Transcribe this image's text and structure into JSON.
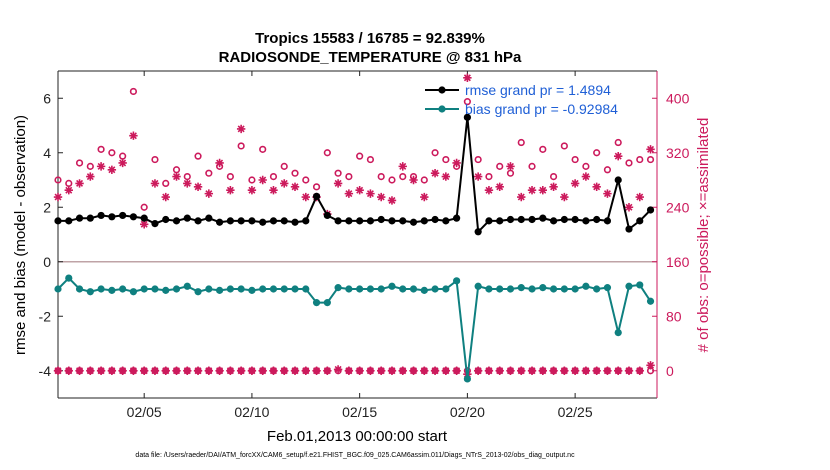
{
  "colors": {
    "rmse": "#000000",
    "bias": "#0f8080",
    "obs": "#cc1a5c",
    "legend_text": "#1f5fd6",
    "zero_line": "#bfa3a6"
  },
  "chart_data": {
    "type": "line",
    "title": "Tropics 15583 / 16785 = 92.839%",
    "subtitle": "RADIOSONDE_TEMPERATURE @ 831 hPa",
    "xlabel": "Feb.01,2013 00:00:00 start",
    "ylabel_left": "rmse and bias (model - observation)",
    "ylabel_right": "# of obs: o=possible; ×=assimilated",
    "footnote": "data file: /Users/raeder/DAI/ATM_forcXX/CAM6_setup/f.e21.FHIST_BGC.f09_025.CAM6assim.011/Diags_NTrS_2013-02/obs_diag_output.nc",
    "xlim": [
      1,
      28.8
    ],
    "ylim_left": [
      -5,
      7
    ],
    "ylim_right": [
      -40,
      440
    ],
    "x_ticks": [
      5,
      10,
      15,
      20,
      25
    ],
    "x_tick_labels": [
      "02/05",
      "02/10",
      "02/15",
      "02/20",
      "02/25"
    ],
    "y_left_ticks": [
      -4,
      -2,
      0,
      2,
      4,
      6
    ],
    "y_left_tick_labels": [
      "-4",
      "-2",
      "0",
      "2",
      "4",
      "6"
    ],
    "y_right_ticks": [
      0,
      80,
      160,
      240,
      320,
      400
    ],
    "y_right_tick_labels": [
      "0",
      "80",
      "160",
      "240",
      "320",
      "400"
    ],
    "legend": [
      {
        "name": "rmse grand pr = 1.4894",
        "series": "rmse"
      },
      {
        "name": "bias grand pr = -0.92984",
        "series": "bias"
      }
    ],
    "x": [
      1.0,
      1.5,
      2.0,
      2.5,
      3.0,
      3.5,
      4.0,
      4.5,
      5.0,
      5.5,
      6.0,
      6.5,
      7.0,
      7.5,
      8.0,
      8.5,
      9.0,
      9.5,
      10.0,
      10.5,
      11.0,
      11.5,
      12.0,
      12.5,
      13.0,
      13.5,
      14.0,
      14.5,
      15.0,
      15.5,
      16.0,
      16.5,
      17.0,
      17.5,
      18.0,
      18.5,
      19.0,
      19.5,
      20.0,
      20.5,
      21.0,
      21.5,
      22.0,
      22.5,
      23.0,
      23.5,
      24.0,
      24.5,
      25.0,
      25.5,
      26.0,
      26.5,
      27.0,
      27.5,
      28.0,
      28.5
    ],
    "series": [
      {
        "name": "rmse",
        "values": [
          1.5,
          1.5,
          1.6,
          1.6,
          1.7,
          1.65,
          1.7,
          1.65,
          1.6,
          1.4,
          1.55,
          1.5,
          1.6,
          1.5,
          1.6,
          1.45,
          1.5,
          1.5,
          1.5,
          1.45,
          1.5,
          1.5,
          1.45,
          1.5,
          2.4,
          1.7,
          1.5,
          1.5,
          1.5,
          1.5,
          1.55,
          1.5,
          1.5,
          1.45,
          1.5,
          1.55,
          1.5,
          1.6,
          5.3,
          1.1,
          1.5,
          1.5,
          1.55,
          1.55,
          1.55,
          1.6,
          1.5,
          1.55,
          1.55,
          1.5,
          1.55,
          1.5,
          3.0,
          1.2,
          1.5,
          1.9
        ]
      },
      {
        "name": "bias",
        "values": [
          -1.0,
          -0.6,
          -1.0,
          -1.1,
          -1.0,
          -1.05,
          -1.0,
          -1.1,
          -1.0,
          -1.0,
          -1.05,
          -1.0,
          -0.9,
          -1.1,
          -1.0,
          -1.05,
          -1.0,
          -1.0,
          -1.05,
          -1.0,
          -1.0,
          -1.0,
          -1.0,
          -1.0,
          -1.5,
          -1.5,
          -0.95,
          -1.0,
          -1.0,
          -1.0,
          -1.0,
          -0.9,
          -1.0,
          -1.0,
          -1.05,
          -1.0,
          -1.0,
          -0.7,
          -4.3,
          -0.9,
          -1.0,
          -1.0,
          -1.0,
          -0.95,
          -1.0,
          -0.95,
          -1.0,
          -1.0,
          -1.0,
          -0.9,
          -1.0,
          -0.95,
          -2.6,
          -0.9,
          -0.85,
          -1.45
        ]
      },
      {
        "name": "obs_possible",
        "values": [
          280,
          275,
          305,
          300,
          325,
          320,
          315,
          410,
          240,
          310,
          275,
          295,
          285,
          315,
          290,
          300,
          285,
          330,
          280,
          325,
          285,
          300,
          290,
          280,
          270,
          320,
          290,
          285,
          315,
          310,
          285,
          280,
          285,
          285,
          280,
          320,
          310,
          300,
          395,
          310,
          285,
          300,
          290,
          335,
          300,
          325,
          285,
          330,
          310,
          300,
          320,
          295,
          335,
          305,
          310,
          310
        ]
      },
      {
        "name": "obs_assimilated",
        "values": [
          255,
          265,
          275,
          285,
          300,
          295,
          305,
          345,
          215,
          275,
          255,
          285,
          275,
          270,
          260,
          305,
          265,
          355,
          265,
          280,
          265,
          275,
          270,
          255,
          255,
          230,
          275,
          260,
          265,
          260,
          255,
          250,
          300,
          280,
          255,
          290,
          285,
          305,
          430,
          285,
          265,
          270,
          300,
          255,
          265,
          265,
          270,
          255,
          275,
          285,
          270,
          260,
          315,
          240,
          255,
          325
        ]
      },
      {
        "name": "obs_possible_bottom",
        "values": [
          0,
          0,
          0,
          0,
          0,
          0,
          0,
          0,
          0,
          0,
          0,
          0,
          0,
          0,
          0,
          0,
          0,
          0,
          0,
          0,
          0,
          0,
          0,
          0,
          0,
          0,
          0,
          0,
          0,
          0,
          0,
          0,
          0,
          0,
          0,
          0,
          0,
          0,
          0,
          0,
          0,
          0,
          0,
          0,
          0,
          0,
          0,
          0,
          0,
          0,
          0,
          0,
          0,
          0,
          0,
          0
        ]
      },
      {
        "name": "obs_assimilated_bottom",
        "values": [
          0,
          0,
          0,
          0,
          0,
          0,
          0,
          0,
          0,
          0,
          0,
          0,
          0,
          0,
          0,
          0,
          0,
          0,
          0,
          0,
          0,
          0,
          0,
          0,
          0,
          0,
          2,
          0,
          0,
          0,
          0,
          0,
          0,
          0,
          0,
          0,
          0,
          0,
          -5,
          0,
          0,
          0,
          0,
          0,
          0,
          0,
          0,
          0,
          0,
          0,
          0,
          0,
          0,
          0,
          0,
          8
        ]
      }
    ]
  }
}
